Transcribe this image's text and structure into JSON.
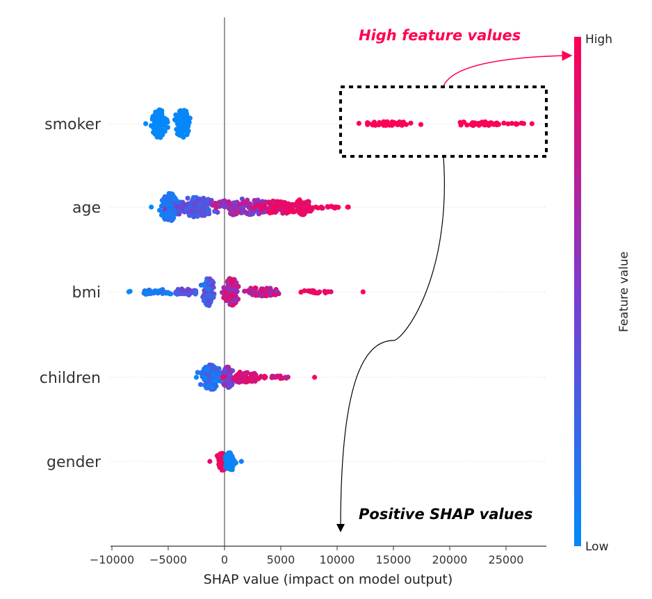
{
  "chart_data": {
    "type": "scatter",
    "subtype": "shap-beeswarm",
    "xlabel": "SHAP value (impact on model output)",
    "xlim": [
      -10000,
      29000
    ],
    "xticks": [
      -10000,
      -5000,
      0,
      5000,
      10000,
      15000,
      20000,
      25000
    ],
    "xtick_labels": [
      "−10000",
      "−5000",
      "0",
      "5000",
      "10000",
      "15000",
      "20000",
      "25000"
    ],
    "features": [
      "smoker",
      "age",
      "bmi",
      "children",
      "gender"
    ],
    "series": [
      {
        "feature": "smoker",
        "clusters": [
          {
            "center": -5800,
            "spread": 450,
            "height": 42,
            "n": 120,
            "fv": [
              0.0,
              0.04
            ]
          },
          {
            "center": -3700,
            "spread": 550,
            "height": 40,
            "n": 110,
            "fv": [
              0.0,
              0.04
            ]
          },
          {
            "center": 14500,
            "spread": 1800,
            "height": 6,
            "n": 40,
            "fv": [
              0.97,
              1.0
            ]
          },
          {
            "center": 22500,
            "spread": 1800,
            "height": 6,
            "n": 45,
            "fv": [
              0.97,
              1.0
            ]
          },
          {
            "center": 26000,
            "spread": 900,
            "height": 2,
            "n": 8,
            "fv": [
              0.97,
              1.0
            ]
          }
        ],
        "range": [
          -7000,
          27300
        ]
      },
      {
        "feature": "age",
        "clusters": [
          {
            "center": -4900,
            "spread": 650,
            "height": 40,
            "n": 110,
            "fv": [
              0.0,
              0.2
            ]
          },
          {
            "center": -2600,
            "spread": 1300,
            "height": 30,
            "n": 130,
            "fv": [
              0.15,
              0.5
            ]
          },
          {
            "center": 1500,
            "spread": 2200,
            "height": 24,
            "n": 140,
            "fv": [
              0.4,
              0.8
            ]
          },
          {
            "center": 4800,
            "spread": 1400,
            "height": 20,
            "n": 90,
            "fv": [
              0.75,
              1.0
            ]
          },
          {
            "center": 6900,
            "spread": 650,
            "height": 22,
            "n": 60,
            "fv": [
              0.85,
              1.0
            ]
          },
          {
            "center": 9200,
            "spread": 1000,
            "height": 4,
            "n": 18,
            "fv": [
              0.9,
              1.0
            ]
          }
        ],
        "range": [
          -6500,
          11000
        ]
      },
      {
        "feature": "bmi",
        "clusters": [
          {
            "center": -6000,
            "spread": 1400,
            "height": 8,
            "n": 40,
            "fv": [
              0.0,
              0.2
            ]
          },
          {
            "center": -3500,
            "spread": 900,
            "height": 10,
            "n": 30,
            "fv": [
              0.2,
              0.5
            ]
          },
          {
            "center": -1400,
            "spread": 400,
            "height": 40,
            "n": 110,
            "fv": [
              0.1,
              0.5
            ]
          },
          {
            "center": 600,
            "spread": 500,
            "height": 40,
            "n": 110,
            "fv": [
              0.5,
              1.0
            ]
          },
          {
            "center": 3200,
            "spread": 1600,
            "height": 12,
            "n": 60,
            "fv": [
              0.5,
              0.95
            ]
          },
          {
            "center": 7800,
            "spread": 1500,
            "height": 4,
            "n": 18,
            "fv": [
              0.85,
              1.0
            ]
          }
        ],
        "range": [
          -8500,
          12300
        ]
      },
      {
        "feature": "children",
        "clusters": [
          {
            "center": -1200,
            "spread": 750,
            "height": 36,
            "n": 140,
            "fv": [
              0.0,
              0.3
            ]
          },
          {
            "center": 300,
            "spread": 400,
            "height": 30,
            "n": 70,
            "fv": [
              0.3,
              0.7
            ]
          },
          {
            "center": 1800,
            "spread": 1100,
            "height": 16,
            "n": 60,
            "fv": [
              0.75,
              1.0
            ]
          },
          {
            "center": 4600,
            "spread": 900,
            "height": 4,
            "n": 14,
            "fv": [
              0.7,
              1.0
            ]
          }
        ],
        "range": [
          -2500,
          8000
        ]
      },
      {
        "feature": "gender",
        "clusters": [
          {
            "center": -200,
            "spread": 400,
            "height": 26,
            "n": 70,
            "fv": [
              0.9,
              1.0
            ]
          },
          {
            "center": 500,
            "spread": 400,
            "height": 26,
            "n": 70,
            "fv": [
              0.0,
              0.1
            ]
          }
        ],
        "range": [
          -1300,
          1500
        ]
      }
    ],
    "colorbar": {
      "label": "Feature value",
      "high_label": "High",
      "low_label": "Low",
      "low_color": "#008bfb",
      "mid_color": "#7c3bd0",
      "high_color": "#ff0052"
    },
    "annotations": {
      "high_feature": "High feature values",
      "positive_shap": "Positive SHAP values",
      "high_color": "#ff0052",
      "positive_color": "#000000"
    }
  }
}
